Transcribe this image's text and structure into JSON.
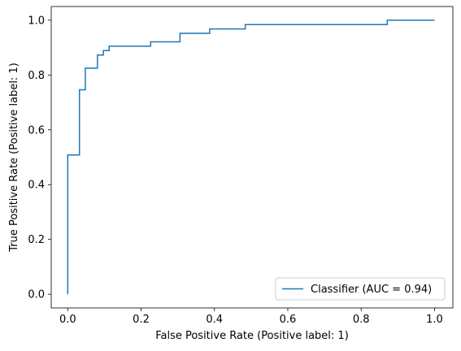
{
  "chart_data": {
    "type": "line",
    "title": "",
    "xlabel": "False Positive Rate (Positive label: 1)",
    "ylabel": "True Positive Rate (Positive label: 1)",
    "xlim": [
      -0.045,
      1.05
    ],
    "ylim": [
      -0.05,
      1.05
    ],
    "xticks": [
      0.0,
      0.2,
      0.4,
      0.6,
      0.8,
      1.0
    ],
    "yticks": [
      0.0,
      0.2,
      0.4,
      0.6,
      0.8,
      1.0
    ],
    "xtick_labels": [
      "0.0",
      "0.2",
      "0.4",
      "0.6",
      "0.8",
      "1.0"
    ],
    "ytick_labels": [
      "0.0",
      "0.2",
      "0.4",
      "0.6",
      "0.8",
      "1.0"
    ],
    "grid": false,
    "legend_position": "lower-right",
    "series": [
      {
        "name": "Classifier (AUC = 0.94)",
        "color": "#1f77b4",
        "drawstyle": "steps-post",
        "x": [
          0.0,
          0.0,
          0.032,
          0.032,
          0.048,
          0.048,
          0.081,
          0.081,
          0.097,
          0.097,
          0.113,
          0.113,
          0.226,
          0.226,
          0.306,
          0.306,
          0.387,
          0.387,
          0.484,
          0.484,
          0.871,
          0.871,
          1.0
        ],
        "y": [
          0.0,
          0.508,
          0.508,
          0.746,
          0.746,
          0.825,
          0.825,
          0.873,
          0.873,
          0.889,
          0.889,
          0.905,
          0.905,
          0.921,
          0.921,
          0.952,
          0.952,
          0.968,
          0.968,
          0.984,
          0.984,
          1.0,
          1.0
        ]
      }
    ]
  }
}
